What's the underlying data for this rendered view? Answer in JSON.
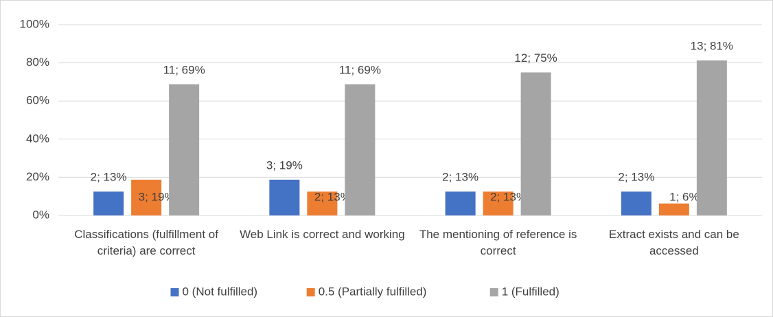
{
  "chart_data": {
    "type": "bar",
    "categories": [
      "Classifications (fulfillment of criteria) are correct",
      "Web Link is correct and working",
      "The mentioning of reference is correct",
      "Extract exists and can be accessed"
    ],
    "series": [
      {
        "name": "0 (Not fulfilled)",
        "color": "#4472c4",
        "values": [
          12.5,
          18.75,
          12.5,
          12.5
        ],
        "value_labels": [
          "2; 13%",
          "3; 19%",
          "2; 13%",
          "2; 13%"
        ]
      },
      {
        "name": "0.5 (Partially fulfilled)",
        "color": "#ed7d31",
        "values": [
          18.75,
          12.5,
          12.5,
          6.25
        ],
        "value_labels": [
          "3; 19%",
          "2; 13%",
          "2; 13%",
          "1; 6%"
        ]
      },
      {
        "name": "1 (Fulfilled)",
        "color": "#a5a5a5",
        "values": [
          68.75,
          68.75,
          75,
          81.25
        ],
        "value_labels": [
          "11; 69%",
          "11; 69%",
          "12; 75%",
          "13; 81%"
        ]
      }
    ],
    "ylim": [
      0,
      100
    ],
    "yticks": [
      {
        "value": 0,
        "label": "0%"
      },
      {
        "value": 20,
        "label": "20%"
      },
      {
        "value": 40,
        "label": "40%"
      },
      {
        "value": 60,
        "label": "60%"
      },
      {
        "value": 80,
        "label": "80%"
      },
      {
        "value": 100,
        "label": "100%"
      }
    ],
    "grid": true,
    "legend": "bottom"
  }
}
